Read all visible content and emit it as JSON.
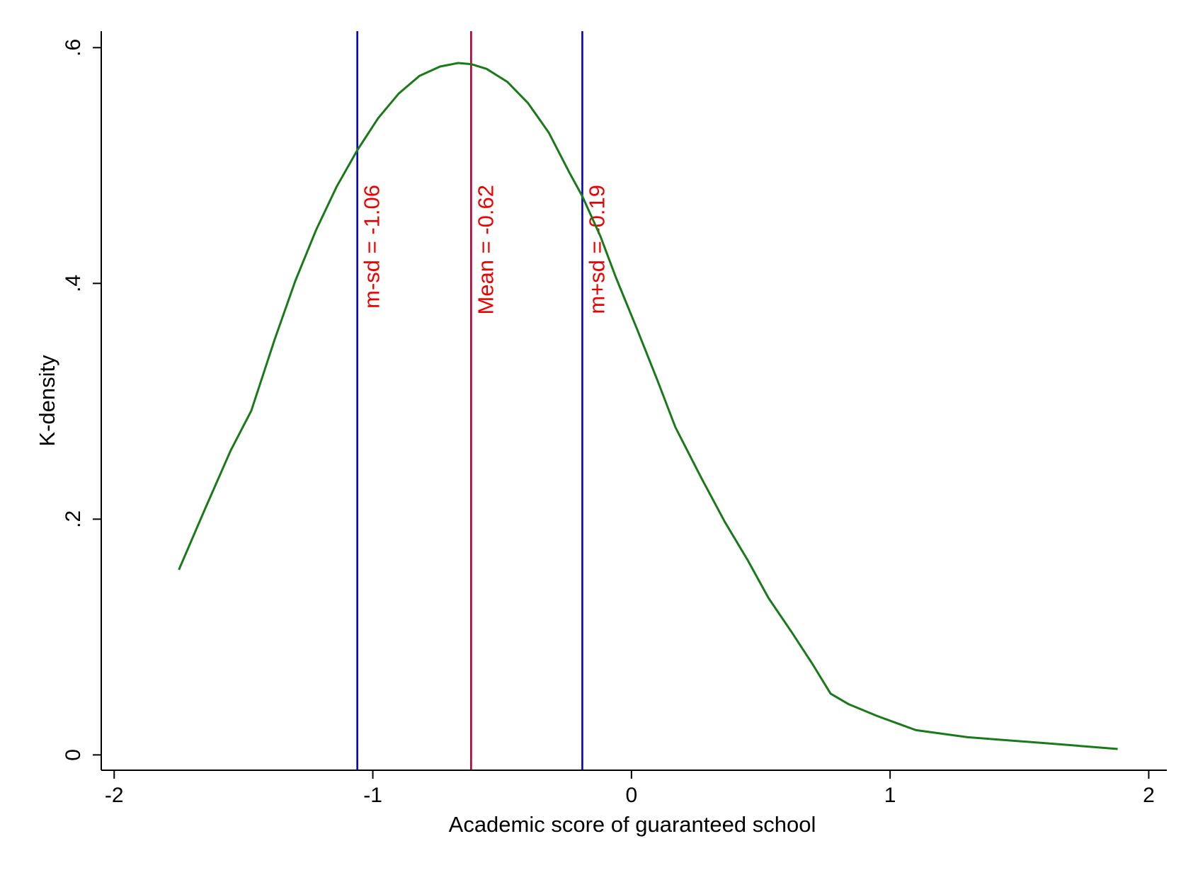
{
  "chart_data": {
    "type": "line",
    "title": "",
    "xlabel": "Academic score of guaranteed school",
    "ylabel": "K-density",
    "xlim": [
      -2.05,
      2.07
    ],
    "ylim": [
      -0.013,
      0.614
    ],
    "x_ticks": [
      {
        "value": -2,
        "label": "-2"
      },
      {
        "value": -1,
        "label": "-1"
      },
      {
        "value": 0,
        "label": "0"
      },
      {
        "value": 1,
        "label": "1"
      },
      {
        "value": 2,
        "label": "2"
      }
    ],
    "y_ticks": [
      {
        "value": 0,
        "label": "0"
      },
      {
        "value": 0.2,
        "label": ".2"
      },
      {
        "value": 0.4,
        "label": ".4"
      },
      {
        "value": 0.6,
        "label": ".6"
      }
    ],
    "grid": false,
    "legend": "none",
    "series": [
      {
        "color": "#1a7a1a",
        "points": [
          [
            -1.75,
            0.157
          ],
          [
            -1.65,
            0.208
          ],
          [
            -1.55,
            0.258
          ],
          [
            -1.47,
            0.292
          ],
          [
            -1.38,
            0.352
          ],
          [
            -1.3,
            0.402
          ],
          [
            -1.22,
            0.445
          ],
          [
            -1.14,
            0.482
          ],
          [
            -1.06,
            0.513
          ],
          [
            -0.98,
            0.54
          ],
          [
            -0.9,
            0.561
          ],
          [
            -0.82,
            0.576
          ],
          [
            -0.74,
            0.584
          ],
          [
            -0.67,
            0.587
          ],
          [
            -0.62,
            0.586
          ],
          [
            -0.56,
            0.582
          ],
          [
            -0.48,
            0.571
          ],
          [
            -0.4,
            0.553
          ],
          [
            -0.32,
            0.528
          ],
          [
            -0.24,
            0.494
          ],
          [
            -0.19,
            0.474
          ],
          [
            -0.12,
            0.44
          ],
          [
            -0.06,
            0.405
          ],
          [
            0.02,
            0.362
          ],
          [
            0.1,
            0.318
          ],
          [
            0.17,
            0.278
          ],
          [
            0.27,
            0.235
          ],
          [
            0.36,
            0.198
          ],
          [
            0.45,
            0.165
          ],
          [
            0.53,
            0.133
          ],
          [
            0.62,
            0.104
          ],
          [
            0.7,
            0.077
          ],
          [
            0.77,
            0.052
          ],
          [
            0.84,
            0.043
          ],
          [
            0.95,
            0.033
          ],
          [
            1.1,
            0.021
          ],
          [
            1.3,
            0.015
          ],
          [
            1.6,
            0.01
          ],
          [
            1.88,
            0.005
          ]
        ]
      }
    ],
    "reference_lines": [
      {
        "x": -1.06,
        "label": "m-sd = -1.06",
        "color": "#0000cc",
        "label_color": "#ee0000"
      },
      {
        "x": -0.62,
        "label": "Mean = -0.62",
        "color": "#b00030",
        "label_color": "#ee0000"
      },
      {
        "x": -0.19,
        "label": "m+sd = -0.19",
        "color": "#0000cc",
        "label_color": "#ee0000"
      }
    ]
  }
}
